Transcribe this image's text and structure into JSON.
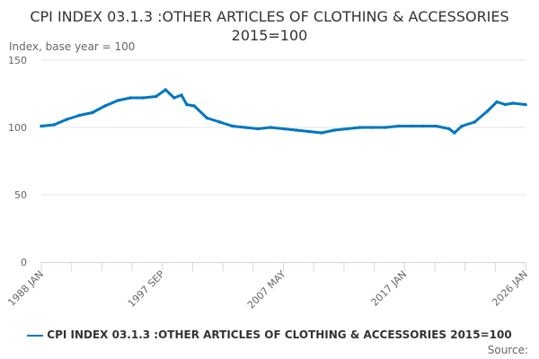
{
  "chart_data": {
    "type": "line",
    "title": "CPI INDEX 03.1.3 :OTHER ARTICLES OF CLOTHING & ACCESSORIES 2015=100",
    "ylabel": "Index, base year = 100",
    "ylim": [
      0,
      150
    ],
    "yticks": [
      0,
      50,
      100,
      150
    ],
    "xlim": [
      "1988-01",
      "2026-01"
    ],
    "xtick_labels": [
      "1988 JAN",
      "1997 SEP",
      "2007 MAY",
      "2017 JAN",
      "2026 JAN"
    ],
    "grid": true,
    "legend_position": "bottom",
    "color": "#0077c0",
    "series": [
      {
        "name": "CPI INDEX 03.1.3 :OTHER ARTICLES OF CLOTHING & ACCESSORIES 2015=100",
        "x": [
          "1988-01",
          "1989-01",
          "1990-01",
          "1991-01",
          "1992-01",
          "1993-01",
          "1994-01",
          "1995-01",
          "1996-01",
          "1997-01",
          "1997-10",
          "1998-06",
          "1999-01",
          "1999-06",
          "2000-01",
          "2001-01",
          "2002-01",
          "2003-01",
          "2004-01",
          "2005-01",
          "2006-01",
          "2007-01",
          "2008-01",
          "2009-01",
          "2010-01",
          "2011-01",
          "2012-01",
          "2013-01",
          "2014-01",
          "2015-01",
          "2016-01",
          "2017-01",
          "2018-01",
          "2019-01",
          "2020-01",
          "2020-06",
          "2021-01",
          "2022-01",
          "2023-01",
          "2023-10",
          "2024-06",
          "2025-01",
          "2026-01"
        ],
        "values": [
          101,
          102,
          106,
          109,
          111,
          116,
          120,
          122,
          122,
          123,
          128,
          122,
          124,
          117,
          116,
          107,
          104,
          101,
          100,
          99,
          100,
          99,
          98,
          97,
          96,
          98,
          99,
          100,
          100,
          100,
          101,
          101,
          101,
          101,
          99,
          96,
          101,
          104,
          112,
          119,
          117,
          118,
          117
        ]
      }
    ]
  },
  "source_label": "Source:"
}
